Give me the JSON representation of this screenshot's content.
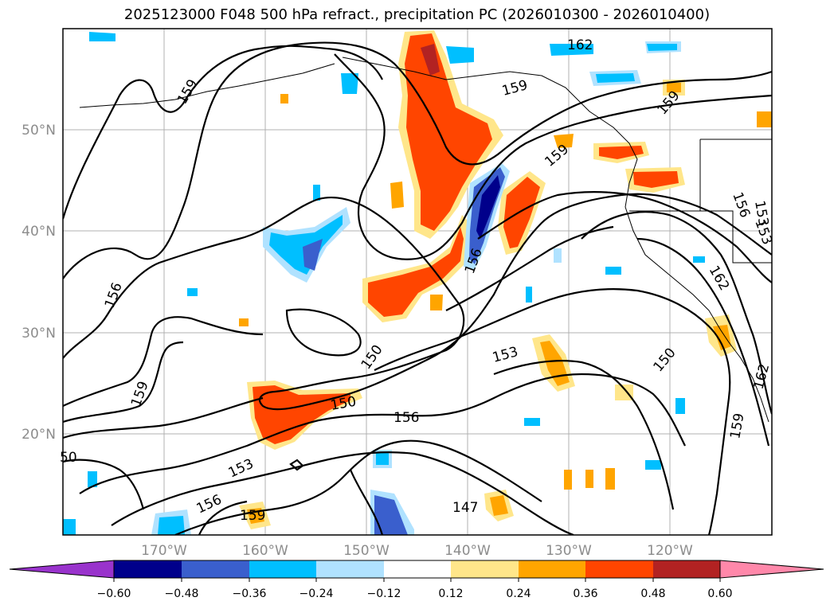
{
  "title": "2025123000 F048 500 hPa refract., precipitation PC (2026010300 - 2026010400)",
  "lat_labels": [
    "50°N",
    "40°N",
    "30°N",
    "20°N"
  ],
  "lon_labels": [
    "170°W",
    "160°W",
    "150°W",
    "140°W",
    "130°W",
    "120°W"
  ],
  "colorbar": {
    "ticks": [
      "−0.60",
      "−0.48",
      "−0.36",
      "−0.24",
      "−0.12",
      "0.12",
      "0.24",
      "0.36",
      "0.48",
      "0.60"
    ],
    "colors": [
      "#9933cc",
      "#00008b",
      "#3a5fcd",
      "#00bfff",
      "#b0e2ff",
      "#ffffff",
      "#ffe68a",
      "#ffa500",
      "#ff4500",
      "#b22222",
      "#ff88aa"
    ]
  },
  "contour_labels": [
    "162",
    "159",
    "159",
    "159",
    "159",
    "159",
    "159",
    "156",
    "156",
    "156",
    "156",
    "156",
    "153",
    "153",
    "153",
    "150",
    "150",
    "150",
    "147",
    "162",
    "159",
    "162",
    "153",
    "50"
  ]
}
